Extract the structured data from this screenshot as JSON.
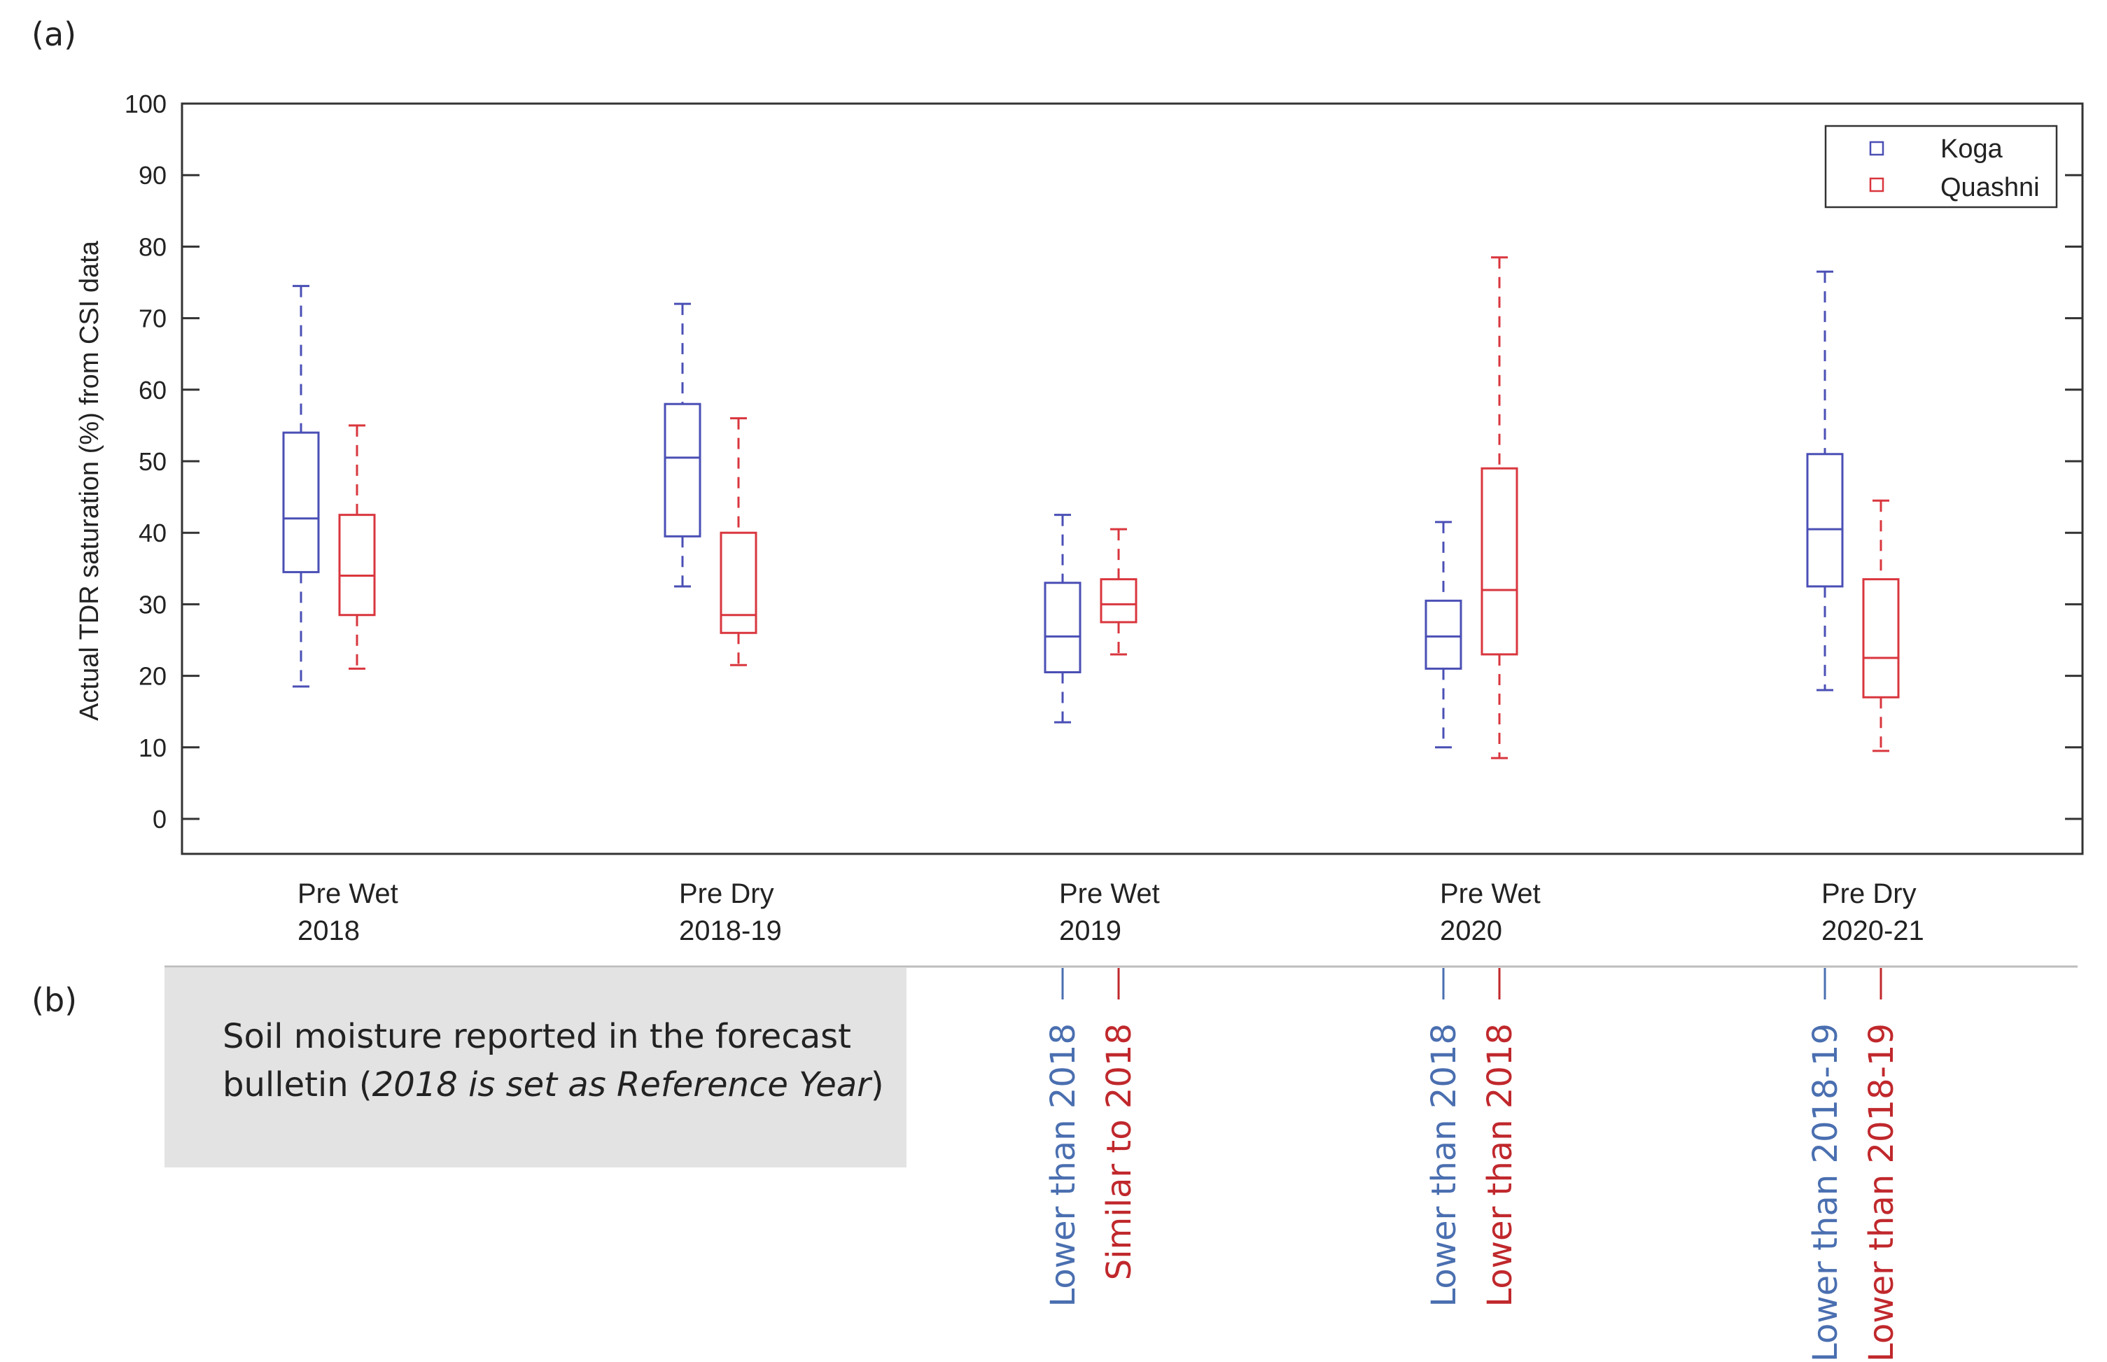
{
  "panel_labels": {
    "a": "(a)",
    "b": "(b)"
  },
  "chart_data": {
    "type": "box",
    "ylabel": "Actual TDR saturation (%) from CSI data",
    "ylim": [
      0,
      100
    ],
    "yticks": [
      0,
      10,
      20,
      30,
      40,
      50,
      60,
      70,
      80,
      90,
      100
    ],
    "categories": [
      {
        "line1": "Pre Wet",
        "line2": "2018"
      },
      {
        "line1": "Pre Dry",
        "line2": "2018-19"
      },
      {
        "line1": "Pre Wet",
        "line2": "2019"
      },
      {
        "line1": "Pre Wet",
        "line2": "2020"
      },
      {
        "line1": "Pre Dry",
        "line2": "2020-21"
      }
    ],
    "series": [
      {
        "name": "Koga",
        "color": "#4a4fb5",
        "boxes": [
          {
            "min": 18.5,
            "q1": 34.5,
            "median": 42,
            "q3": 54,
            "max": 74.5
          },
          {
            "min": 32.5,
            "q1": 39.5,
            "median": 50.5,
            "q3": 58,
            "max": 72
          },
          {
            "min": 13.5,
            "q1": 20.5,
            "median": 25.5,
            "q3": 33,
            "max": 42.5
          },
          {
            "min": 10,
            "q1": 21,
            "median": 25.5,
            "q3": 30.5,
            "max": 41.5
          },
          {
            "min": 18,
            "q1": 32.5,
            "median": 40.5,
            "q3": 51,
            "max": 76.5
          }
        ]
      },
      {
        "name": "Quashni",
        "color": "#d9363e",
        "boxes": [
          {
            "min": 21,
            "q1": 28.5,
            "median": 34,
            "q3": 42.5,
            "max": 55
          },
          {
            "min": 21.5,
            "q1": 26,
            "median": 28.5,
            "q3": 40,
            "max": 56
          },
          {
            "min": 23,
            "q1": 27.5,
            "median": 30,
            "q3": 33.5,
            "max": 40.5
          },
          {
            "min": 8.5,
            "q1": 23,
            "median": 32,
            "q3": 49,
            "max": 78.5
          },
          {
            "min": 9.5,
            "q1": 17,
            "median": 22.5,
            "q3": 33.5,
            "max": 44.5
          }
        ]
      }
    ],
    "legend_position": "top-right"
  },
  "bulletin": {
    "text_before": "Soil moisture reported in the forecast bulletin (",
    "text_italic": "2018 is set as Reference Year",
    "text_after": ")",
    "labels": [
      {
        "category": 2,
        "series": "Koga",
        "text": "Lower than 2018",
        "color": "#4a6fb0"
      },
      {
        "category": 2,
        "series": "Quashni",
        "text": "Similar to 2018",
        "color": "#c0282c"
      },
      {
        "category": 3,
        "series": "Koga",
        "text": "Lower than 2018",
        "color": "#4a6fb0"
      },
      {
        "category": 3,
        "series": "Quashni",
        "text": "Lower than 2018",
        "color": "#c0282c"
      },
      {
        "category": 4,
        "series": "Koga",
        "text": "Lower than 2018-19",
        "color": "#4a6fb0"
      },
      {
        "category": 4,
        "series": "Quashni",
        "text": "Lower than 2018-19",
        "color": "#c0282c"
      }
    ]
  }
}
